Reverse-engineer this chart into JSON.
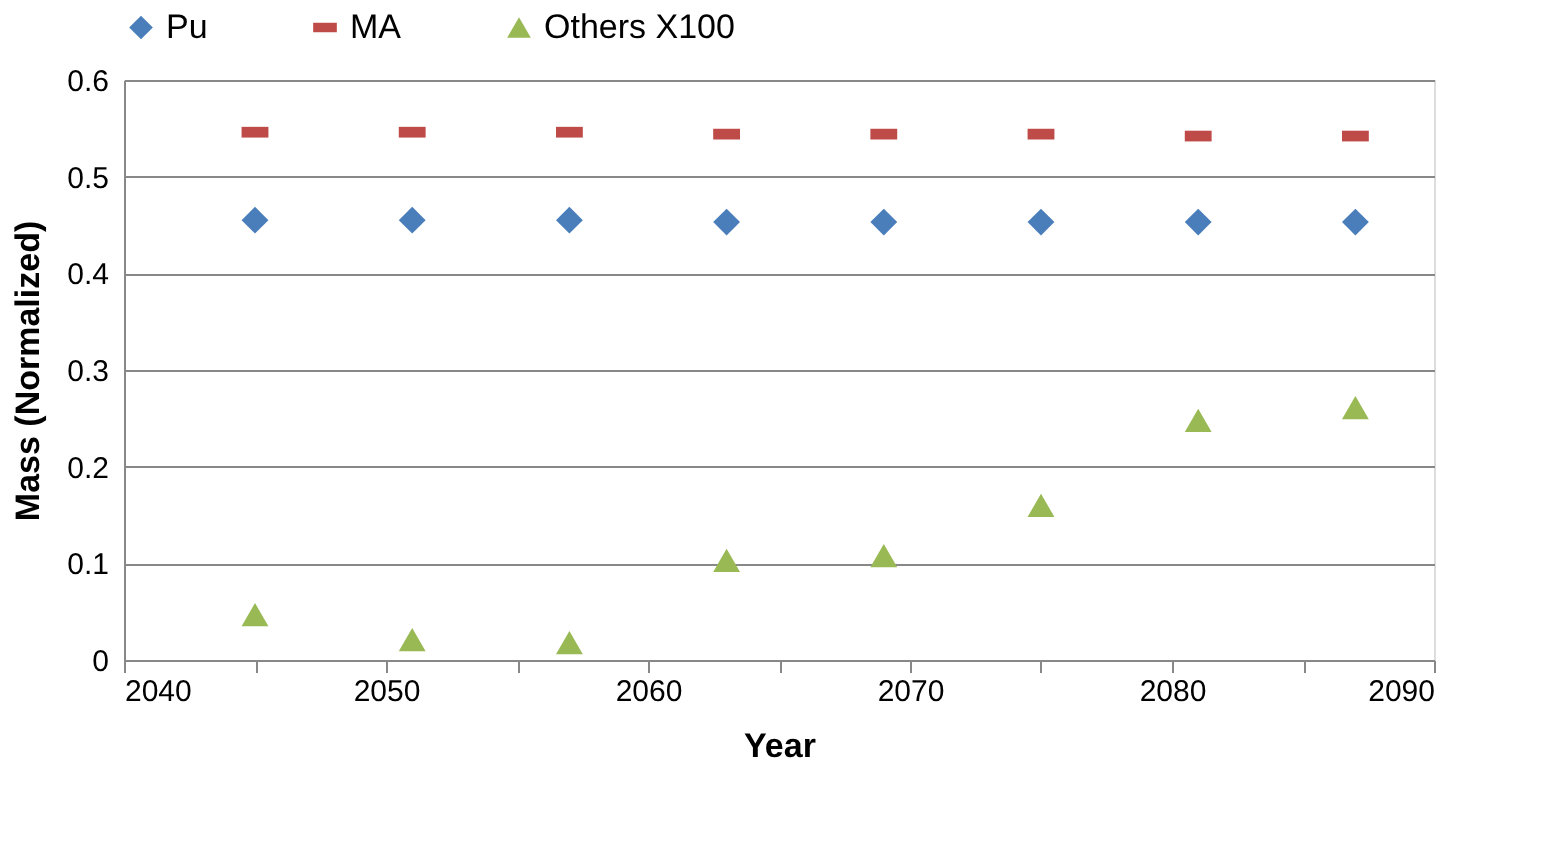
{
  "chart_data": {
    "type": "scatter",
    "xlabel": "Year",
    "ylabel": "Mass (Normalized)",
    "x": [
      2045,
      2051,
      2057,
      2063,
      2069,
      2075,
      2081,
      2087
    ],
    "series": [
      {
        "name": "Pu",
        "color": "#4a7ebb",
        "marker": "diamond",
        "values": [
          0.455,
          0.455,
          0.455,
          0.453,
          0.453,
          0.453,
          0.453,
          0.453
        ]
      },
      {
        "name": "MA",
        "color": "#be4b48",
        "marker": "square",
        "values": [
          0.546,
          0.546,
          0.546,
          0.544,
          0.544,
          0.544,
          0.542,
          0.542
        ]
      },
      {
        "name": "Others X100",
        "color": "#98b954",
        "marker": "triangle",
        "values": [
          0.047,
          0.021,
          0.018,
          0.103,
          0.108,
          0.16,
          0.248,
          0.261
        ]
      }
    ],
    "xlim": [
      2040,
      2090
    ],
    "xticks": [
      2040,
      {
        "value": 2045,
        "label": null
      },
      2050,
      {
        "value": 2055,
        "label": null
      },
      2060,
      {
        "value": 2065,
        "label": null
      },
      2070,
      {
        "value": 2075,
        "label": null
      },
      2080,
      {
        "value": 2085,
        "label": null
      },
      2090
    ],
    "ylim": [
      0,
      0.6
    ],
    "yticks": [
      0,
      0.1,
      0.2,
      0.3,
      0.4,
      0.5,
      0.6
    ],
    "grid": "y",
    "legend": "top"
  }
}
